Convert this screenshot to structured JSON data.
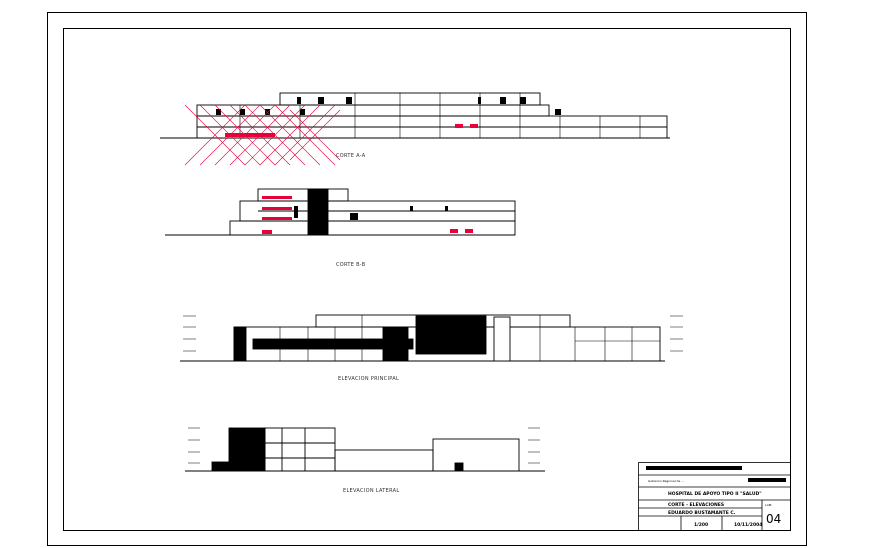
{
  "drawing": {
    "views": [
      {
        "label": "CORTE A-A"
      },
      {
        "label": "CORTE B-B"
      },
      {
        "label": "ELEVACION PRINCIPAL"
      },
      {
        "label": "ELEVACION LATERAL"
      }
    ]
  },
  "title_block": {
    "entity": "Gobierno Regional de ...",
    "project": "HOSPITAL DE APOYO TIPO II \"SALUD\"",
    "sheet_content": "CORTE - ELEVACIONES",
    "author": "EDUARDO BUSTAMANTE C.",
    "scale": "1/200",
    "date": "10/11/2004",
    "sheet_label": "LAM.",
    "sheet_number": "04"
  },
  "colors": {
    "line": "#000000",
    "hatch": "#e8003a",
    "frame": "#000000"
  }
}
